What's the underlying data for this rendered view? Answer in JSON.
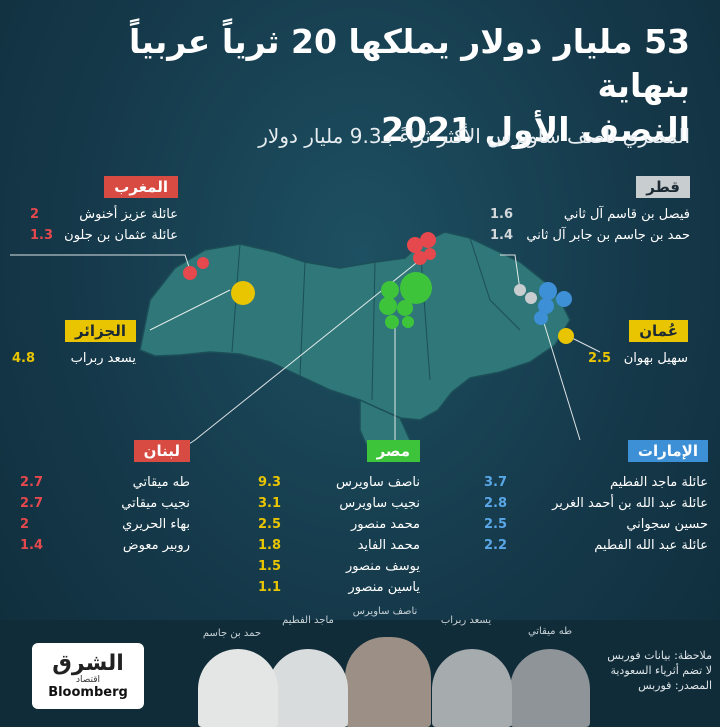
{
  "title_line1": "53 مليار دولار يملكها 20 ثرياً عربياً بنهاية",
  "title_line2": "النصف الأول 2021",
  "subtitle": "المصري ناصف ساويرس الأكثر ثراءً بـ9.3 مليار دولار",
  "colors": {
    "red": "#e5484d",
    "yellow": "#e9c400",
    "green": "#3ec43a",
    "blue": "#3d8fd6",
    "grey": "#c8cdd0",
    "map": "#2f7778"
  },
  "groups": {
    "morocco": {
      "tag": "المغرب",
      "color": "#d84b43",
      "rows": [
        {
          "name": "عائلة عزيز أخنوش",
          "value": "2"
        },
        {
          "name": "عائلة عثمان بن جلون",
          "value": "1.3"
        }
      ]
    },
    "qatar": {
      "tag": "قطر",
      "color": "#c8cdd0",
      "rows": [
        {
          "name": "فيصل بن قاسم آل ثاني",
          "value": "1.6"
        },
        {
          "name": "حمد بن جاسم بن جابر آل ثاني",
          "value": "1.4"
        }
      ]
    },
    "algeria": {
      "tag": "الجزائر",
      "color": "#e9c400",
      "rows": [
        {
          "name": "يسعد ربراب",
          "value": "4.8"
        }
      ]
    },
    "oman": {
      "tag": "عُمان",
      "color": "#e9c400",
      "rows": [
        {
          "name": "سهيل بهوان",
          "value": "2.5"
        }
      ]
    },
    "lebanon": {
      "tag": "لبنان",
      "color": "#d84b43",
      "rows": [
        {
          "name": "طه ميقاتي",
          "value": "2.7"
        },
        {
          "name": "نجيب ميقاتي",
          "value": "2.7"
        },
        {
          "name": "بهاء الحريري",
          "value": "2"
        },
        {
          "name": "روبير معوض",
          "value": "1.4"
        }
      ]
    },
    "egypt": {
      "tag": "مصر",
      "color": "#3ec43a",
      "rows": [
        {
          "name": "ناصف ساويرس",
          "value": "9.3"
        },
        {
          "name": "نجيب ساويرس",
          "value": "3.1"
        },
        {
          "name": "محمد منصور",
          "value": "2.5"
        },
        {
          "name": "محمد الفايد",
          "value": "1.8"
        },
        {
          "name": "يوسف منصور",
          "value": "1.5"
        },
        {
          "name": "ياسين منصور",
          "value": "1.1"
        }
      ]
    },
    "uae": {
      "tag": "الإمارات",
      "color": "#3d8fd6",
      "rows": [
        {
          "name": "عائلة ماجد الفطيم",
          "value": "3.7"
        },
        {
          "name": "عائلة عبد الله بن أحمد الغرير",
          "value": "2.8"
        },
        {
          "name": "حسين سجواني",
          "value": "2.5"
        },
        {
          "name": "عائلة عبد الله الفطيم",
          "value": "2.2"
        }
      ]
    }
  },
  "people": [
    "طه ميقاتي",
    "يسعد ربراب",
    "ناصف ساويرس",
    "ماجد الفطيم",
    "حمد بن جاسم"
  ],
  "note": {
    "line1": "ملاحظة: بيانات فوربس",
    "line2": "لا تضم أثرياء السعودية",
    "line3": "المصدر: فوربس"
  },
  "logo": {
    "ar": "الشرق",
    "sub": "اقتصاد",
    "en": "Bloomberg"
  }
}
